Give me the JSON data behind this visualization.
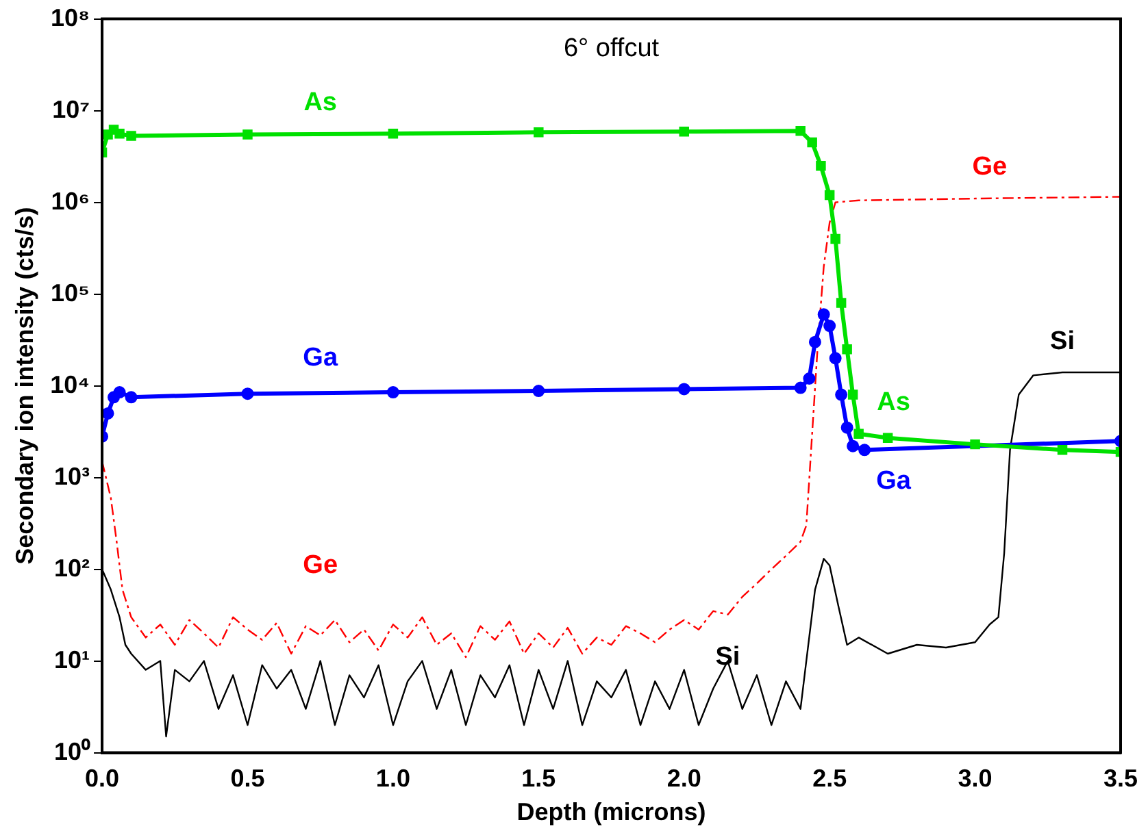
{
  "chart_data": {
    "type": "line",
    "xlabel": "Depth (microns)",
    "ylabel": "Secondary ion intensity (cts/s)",
    "annotations": [
      "6° offcut"
    ],
    "log": "y",
    "grid": false,
    "legend": false,
    "xlim": [
      0,
      3.5
    ],
    "xticks": [
      {
        "value": 0,
        "label": "0.0"
      },
      {
        "value": 0.5,
        "label": "0.5"
      },
      {
        "value": 1,
        "label": "1.0"
      },
      {
        "value": 1.5,
        "label": "1.5"
      },
      {
        "value": 2,
        "label": "2.0"
      },
      {
        "value": 2.5,
        "label": "2.5"
      },
      {
        "value": 3,
        "label": "3.0"
      },
      {
        "value": 3.5,
        "label": "3.5"
      }
    ],
    "ylim": [
      1,
      100000000
    ],
    "yticks": [
      {
        "value": 1,
        "label": "10⁰"
      },
      {
        "value": 10,
        "label": "10¹"
      },
      {
        "value": 100,
        "label": "10²"
      },
      {
        "value": 1000,
        "label": "10³"
      },
      {
        "value": 10000,
        "label": "10⁴"
      },
      {
        "value": 100000,
        "label": "10⁵"
      },
      {
        "value": 1000000,
        "label": "10⁶"
      },
      {
        "value": 10000000,
        "label": "10⁷"
      },
      {
        "value": 100000000,
        "label": "10⁸"
      }
    ],
    "series": [
      {
        "name": "As",
        "color": "#00e000",
        "marker": "square",
        "line_style": "solid",
        "x": [
          0,
          0.02,
          0.04,
          0.06,
          0.1,
          0.5,
          1.0,
          1.5,
          2.0,
          2.4,
          2.44,
          2.47,
          2.5,
          2.52,
          2.54,
          2.56,
          2.58,
          2.6,
          2.7,
          3.0,
          3.3,
          3.5
        ],
        "values": [
          3500000,
          5500000,
          6200000,
          5600000,
          5300000,
          5500000,
          5600000,
          5800000,
          5900000,
          6000000,
          4500000,
          2500000,
          1200000,
          400000,
          80000,
          25000,
          8000,
          3000,
          2700,
          2300,
          2000,
          1900
        ]
      },
      {
        "name": "Ga",
        "color": "#0000ff",
        "marker": "circle",
        "line_style": "solid",
        "x": [
          0,
          0.02,
          0.04,
          0.06,
          0.1,
          0.5,
          1.0,
          1.5,
          2.0,
          2.4,
          2.43,
          2.45,
          2.48,
          2.5,
          2.52,
          2.54,
          2.56,
          2.58,
          2.62,
          3.5
        ],
        "values": [
          2800,
          5000,
          7500,
          8500,
          7500,
          8200,
          8500,
          8800,
          9200,
          9500,
          12000,
          30000,
          60000,
          45000,
          20000,
          8000,
          3500,
          2200,
          2000,
          2500
        ]
      },
      {
        "name": "Ge",
        "color": "#ff0000",
        "marker": "none",
        "line_style": "dashed",
        "x": [
          0,
          0.03,
          0.05,
          0.07,
          0.1,
          0.15,
          0.2,
          0.25,
          0.3,
          0.35,
          0.4,
          0.45,
          0.5,
          0.55,
          0.6,
          0.65,
          0.7,
          0.75,
          0.8,
          0.85,
          0.9,
          0.95,
          1.0,
          1.05,
          1.1,
          1.15,
          1.2,
          1.25,
          1.3,
          1.35,
          1.4,
          1.45,
          1.5,
          1.55,
          1.6,
          1.65,
          1.7,
          1.75,
          1.8,
          1.85,
          1.9,
          1.95,
          2.0,
          2.05,
          2.1,
          2.15,
          2.2,
          2.25,
          2.3,
          2.35,
          2.4,
          2.42,
          2.44,
          2.46,
          2.48,
          2.5,
          2.52,
          2.6,
          3.0,
          3.5
        ],
        "values": [
          1500,
          600,
          200,
          60,
          30,
          18,
          25,
          15,
          28,
          20,
          14,
          30,
          22,
          17,
          26,
          12,
          24,
          19,
          28,
          16,
          22,
          13,
          25,
          18,
          30,
          15,
          20,
          11,
          24,
          17,
          27,
          12,
          20,
          14,
          23,
          12,
          18,
          15,
          24,
          20,
          16,
          22,
          28,
          22,
          35,
          32,
          50,
          70,
          100,
          140,
          200,
          300,
          3000,
          30000,
          200000,
          600000,
          1000000,
          1050000,
          1100000,
          1150000
        ]
      },
      {
        "name": "Si",
        "color": "#000000",
        "marker": "none",
        "line_style": "solid",
        "x": [
          0,
          0.03,
          0.06,
          0.08,
          0.1,
          0.15,
          0.2,
          0.22,
          0.25,
          0.3,
          0.35,
          0.4,
          0.45,
          0.5,
          0.55,
          0.6,
          0.65,
          0.7,
          0.75,
          0.8,
          0.85,
          0.9,
          0.95,
          1.0,
          1.05,
          1.1,
          1.15,
          1.2,
          1.25,
          1.3,
          1.35,
          1.4,
          1.45,
          1.5,
          1.55,
          1.6,
          1.65,
          1.7,
          1.75,
          1.8,
          1.85,
          1.9,
          1.95,
          2.0,
          2.05,
          2.1,
          2.15,
          2.2,
          2.25,
          2.3,
          2.35,
          2.4,
          2.42,
          2.45,
          2.48,
          2.5,
          2.53,
          2.56,
          2.6,
          2.7,
          2.8,
          2.9,
          3.0,
          3.05,
          3.08,
          3.1,
          3.12,
          3.15,
          3.2,
          3.3,
          3.5
        ],
        "values": [
          100,
          60,
          30,
          15,
          12,
          8,
          10,
          1.5,
          8,
          6,
          10,
          3,
          7,
          2,
          9,
          5,
          8,
          3,
          10,
          2,
          7,
          4,
          9,
          2,
          6,
          10,
          3,
          8,
          2,
          7,
          4,
          9,
          2,
          8,
          3,
          10,
          2,
          6,
          4,
          8,
          2,
          6,
          3,
          8,
          2,
          5,
          10,
          3,
          7,
          2,
          6,
          3,
          10,
          60,
          130,
          110,
          40,
          15,
          18,
          12,
          15,
          14,
          16,
          25,
          30,
          150,
          2000,
          8000,
          13000,
          14000,
          14000
        ]
      }
    ]
  }
}
